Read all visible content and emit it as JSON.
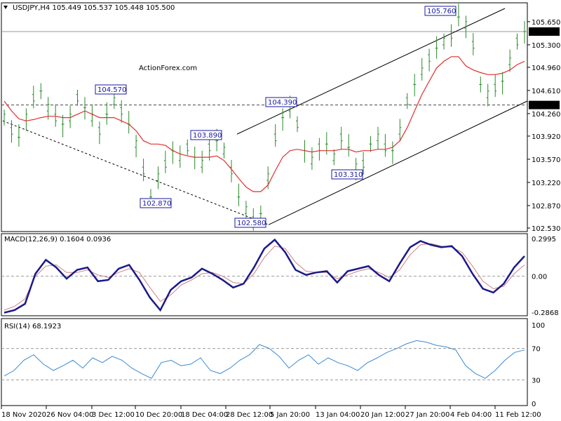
{
  "chart_data": [
    {
      "type": "line",
      "title": "USDJPY,H4 105.449 105.537 105.448 105.500",
      "symbol": "USDJPY,H4",
      "ohlc": [
        "105.449",
        "105.537",
        "105.448",
        "105.500"
      ],
      "watermark": "ActionForex.com",
      "y_ticks": [
        "105.650",
        "105.300",
        "104.960",
        "104.610",
        "104.260",
        "103.920",
        "103.570",
        "103.220",
        "102.870",
        "102.530"
      ],
      "ylim": [
        102.45,
        105.87
      ],
      "current_price": "105.500",
      "horizontal_line": "104.390",
      "annotations": [
        {
          "text": "105.760",
          "value": 105.76
        },
        {
          "text": "104.570",
          "value": 104.57
        },
        {
          "text": "104.390",
          "value": 104.39
        },
        {
          "text": "103.890",
          "value": 103.89
        },
        {
          "text": "103.310",
          "value": 103.31
        },
        {
          "text": "102.870",
          "value": 102.87
        },
        {
          "text": "102.580",
          "value": 102.58
        }
      ],
      "x_ticks": [
        "18 Nov 2020",
        "26 Nov 04:00",
        "3 Dec 12:00",
        "10 Dec 20:00",
        "18 Dec 04:00",
        "28 Dec 12:00",
        "5 Jan 20:00",
        "13 Jan 04:00",
        "20 Jan 12:00",
        "27 Jan 20:00",
        "4 Feb 04:00",
        "11 Feb 12:00"
      ],
      "price_path": [
        104.2,
        104.0,
        103.9,
        104.2,
        104.5,
        104.6,
        104.35,
        104.2,
        104.1,
        104.2,
        104.5,
        104.35,
        104.2,
        104.0,
        104.25,
        104.45,
        104.3,
        104.1,
        103.8,
        103.4,
        103.0,
        103.3,
        103.5,
        103.7,
        103.6,
        103.75,
        103.6,
        103.5,
        103.75,
        103.85,
        103.7,
        103.4,
        103.0,
        102.8,
        102.65,
        102.75,
        103.3,
        103.9,
        104.2,
        104.35,
        104.1,
        103.7,
        103.55,
        103.75,
        103.8,
        103.6,
        103.9,
        103.75,
        103.45,
        103.5,
        103.8,
        103.9,
        103.75,
        103.7,
        104.0,
        104.45,
        104.7,
        104.9,
        105.1,
        105.25,
        105.35,
        105.45,
        105.72,
        105.6,
        105.3,
        104.7,
        104.55,
        104.65,
        104.75,
        105.05,
        105.35,
        105.5
      ],
      "ma_path": [
        104.45,
        104.3,
        104.18,
        104.15,
        104.17,
        104.2,
        104.22,
        104.22,
        104.2,
        104.2,
        104.25,
        104.3,
        104.25,
        104.2,
        104.2,
        104.2,
        104.15,
        104.1,
        104.0,
        103.85,
        103.8,
        103.8,
        103.78,
        103.7,
        103.65,
        103.62,
        103.6,
        103.6,
        103.6,
        103.62,
        103.55,
        103.42,
        103.28,
        103.15,
        103.08,
        103.08,
        103.18,
        103.4,
        103.6,
        103.7,
        103.72,
        103.7,
        103.68,
        103.7,
        103.7,
        103.7,
        103.72,
        103.72,
        103.68,
        103.7,
        103.7,
        103.72,
        103.72,
        103.75,
        103.85,
        104.05,
        104.3,
        104.55,
        104.75,
        104.95,
        105.05,
        105.12,
        105.12,
        104.98,
        104.92,
        104.88,
        104.85,
        104.85,
        104.87,
        104.92,
        105.0,
        105.05
      ]
    },
    {
      "type": "line",
      "title": "MACD(12,26,9) 0.1604 0.0936",
      "y_ticks": [
        "0.2995",
        "0.00",
        "-0.2868"
      ],
      "ylim": [
        -0.33,
        0.35
      ],
      "zero_line": 0.0,
      "macd_path": [
        -0.29,
        -0.27,
        -0.22,
        0.02,
        0.13,
        0.07,
        -0.02,
        0.05,
        0.07,
        -0.04,
        -0.03,
        0.06,
        0.09,
        -0.03,
        -0.17,
        -0.27,
        -0.11,
        -0.04,
        -0.01,
        0.06,
        0.02,
        -0.03,
        -0.09,
        -0.06,
        0.07,
        0.22,
        0.29,
        0.19,
        0.05,
        0.01,
        0.03,
        0.04,
        -0.05,
        0.04,
        0.06,
        0.08,
        0.01,
        -0.04,
        0.1,
        0.23,
        0.28,
        0.25,
        0.23,
        0.24,
        0.16,
        0.02,
        -0.1,
        -0.13,
        -0.06,
        0.07,
        0.16
      ],
      "signal_path": [
        -0.27,
        -0.24,
        -0.18,
        0.0,
        0.08,
        0.09,
        0.03,
        0.03,
        0.05,
        0.01,
        -0.01,
        0.03,
        0.06,
        0.03,
        -0.09,
        -0.2,
        -0.15,
        -0.07,
        -0.03,
        0.02,
        0.03,
        0.0,
        -0.05,
        -0.06,
        0.02,
        0.15,
        0.24,
        0.22,
        0.11,
        0.04,
        0.03,
        0.03,
        -0.02,
        0.01,
        0.04,
        0.06,
        0.03,
        -0.01,
        0.05,
        0.17,
        0.25,
        0.26,
        0.24,
        0.23,
        0.19,
        0.08,
        -0.04,
        -0.1,
        -0.08,
        0.02,
        0.09
      ]
    },
    {
      "type": "line",
      "title": "RSI(14) 68.1923",
      "y_ticks": [
        "100",
        "70",
        "30",
        "0"
      ],
      "ylim": [
        0,
        100
      ],
      "levels": [
        70,
        30
      ],
      "rsi_path": [
        35,
        42,
        55,
        62,
        50,
        42,
        48,
        55,
        45,
        58,
        52,
        60,
        55,
        45,
        38,
        32,
        52,
        55,
        48,
        50,
        58,
        42,
        38,
        45,
        55,
        62,
        75,
        70,
        60,
        45,
        55,
        62,
        50,
        58,
        52,
        48,
        42,
        52,
        58,
        65,
        70,
        76,
        80,
        78,
        74,
        72,
        68,
        48,
        38,
        32,
        42,
        55,
        65,
        68
      ]
    }
  ]
}
